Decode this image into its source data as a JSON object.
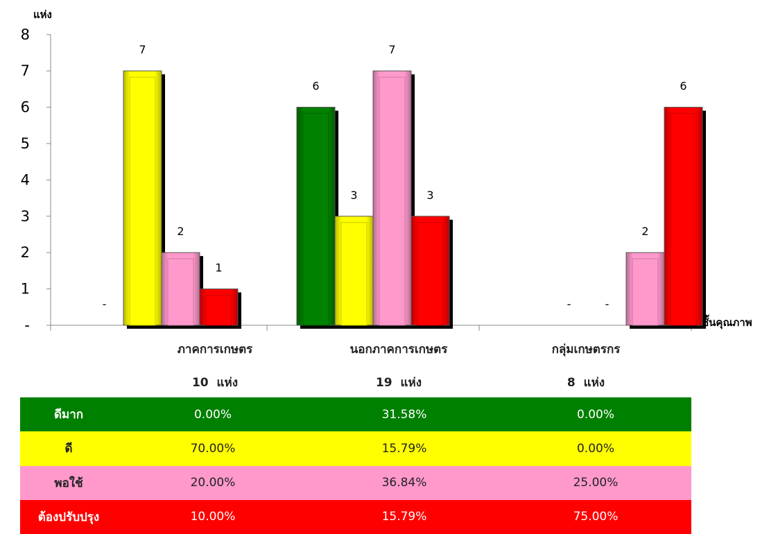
{
  "chart_data": {
    "type": "bar",
    "ylabel": "แห่ง",
    "xlabel": "ชั้นคุณภาพ",
    "ylim": [
      0,
      8
    ],
    "yticks": [
      "-",
      "1",
      "2",
      "3",
      "4",
      "5",
      "6",
      "7",
      "8"
    ],
    "zero_label": "-",
    "categories": [
      "ภาคการเกษตร",
      "นอกภาคการเกษตร",
      "กลุ่มเกษตรกร"
    ],
    "category_counts": [
      "10  แห่ง",
      "19  แห่ง",
      "8  แห่ง"
    ],
    "series": [
      {
        "name": "ดีมาก",
        "color": "#008000",
        "values": [
          0,
          6,
          0
        ]
      },
      {
        "name": "ดี",
        "color": "#ffff00",
        "values": [
          7,
          3,
          0
        ]
      },
      {
        "name": "พอใช้",
        "color": "#ff99cc",
        "values": [
          2,
          7,
          2
        ]
      },
      {
        "name": "ต้องปรับปรุง",
        "color": "#ff0000",
        "values": [
          1,
          3,
          6
        ]
      }
    ],
    "grid": false,
    "legend": "none"
  },
  "table": {
    "rows": [
      {
        "label": "ดีมาก",
        "values": [
          "0.00%",
          "31.58%",
          "0.00%"
        ]
      },
      {
        "label": "ดี",
        "values": [
          "70.00%",
          "15.79%",
          "0.00%"
        ]
      },
      {
        "label": "พอใช้",
        "values": [
          "20.00%",
          "36.84%",
          "25.00%"
        ]
      },
      {
        "label": "ต้องปรับปรุง",
        "values": [
          "10.00%",
          "15.79%",
          "75.00%"
        ]
      }
    ]
  }
}
